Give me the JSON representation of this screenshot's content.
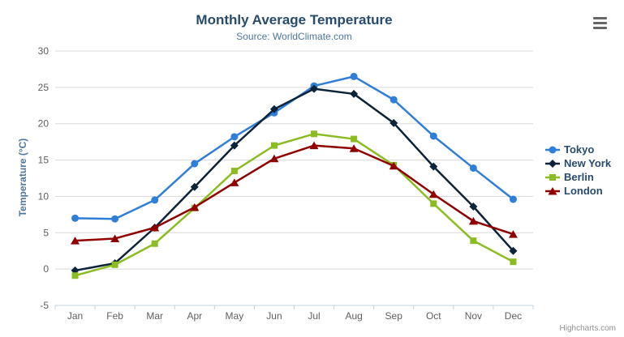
{
  "chart": {
    "credits": "Highcharts.com",
    "context_menu_icon": "hamburger-menu-icon"
  },
  "chart_data": {
    "type": "line",
    "title": "Monthly Average Temperature",
    "subtitle": "Source: WorldClimate.com",
    "xlabel": "",
    "ylabel": "Temperature (°C)",
    "categories": [
      "Jan",
      "Feb",
      "Mar",
      "Apr",
      "May",
      "Jun",
      "Jul",
      "Aug",
      "Sep",
      "Oct",
      "Nov",
      "Dec"
    ],
    "ylim": [
      -5,
      30
    ],
    "yticks": [
      30,
      25,
      20,
      15,
      10,
      5,
      0,
      -5
    ],
    "grid": true,
    "legend_position": "right",
    "series": [
      {
        "name": "Tokyo",
        "color": "#2f7ed8",
        "marker": "circle",
        "values": [
          7.0,
          6.9,
          9.5,
          14.5,
          18.2,
          21.5,
          25.2,
          26.5,
          23.3,
          18.3,
          13.9,
          9.6
        ]
      },
      {
        "name": "New York",
        "color": "#0d233a",
        "marker": "diamond",
        "values": [
          -0.2,
          0.8,
          5.7,
          11.3,
          17.0,
          22.0,
          24.8,
          24.1,
          20.1,
          14.1,
          8.6,
          2.5
        ]
      },
      {
        "name": "Berlin",
        "color": "#8bbc21",
        "marker": "square",
        "values": [
          -0.9,
          0.6,
          3.5,
          8.4,
          13.5,
          17.0,
          18.6,
          17.9,
          14.3,
          9.0,
          3.9,
          1.0
        ]
      },
      {
        "name": "London",
        "color": "#910000",
        "marker": "triangle",
        "values": [
          3.9,
          4.2,
          5.7,
          8.5,
          11.9,
          15.2,
          17.0,
          16.6,
          14.2,
          10.3,
          6.6,
          4.8
        ]
      }
    ]
  },
  "colors": {
    "title": "#274b6d",
    "subtitle": "#4d759e",
    "axis_title": "#4d759e",
    "tick_label": "#606060",
    "gridline": "#d8d8d8",
    "axis_line": "#c0d0e0",
    "legend_text": "#274b6d",
    "credits": "#909090",
    "menu_icon": "#666666",
    "background": "#ffffff"
  }
}
